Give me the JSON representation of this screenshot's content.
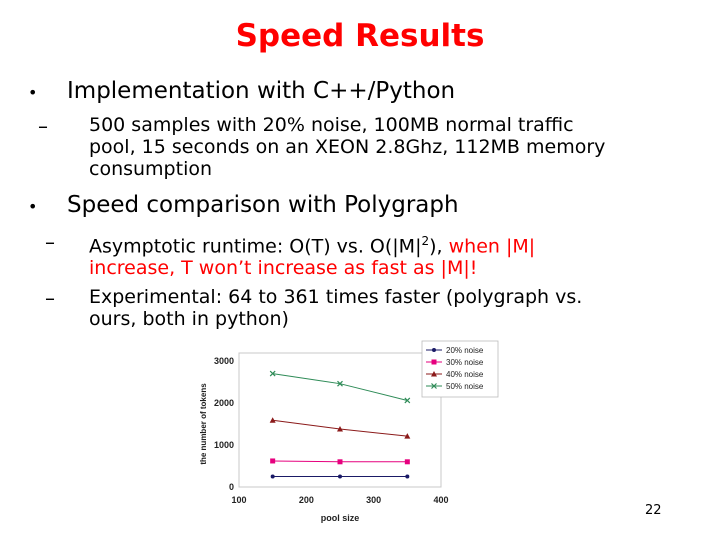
{
  "slide": {
    "title": "Speed Results",
    "bullets": [
      {
        "text": "Implementation with C++/Python",
        "subs": [
          {
            "lines": [
              "500 samples with 20% noise, 100MB normal traffic",
              "pool, 15 seconds on an XEON 2.8Ghz, 112MB memory",
              "consumption"
            ]
          }
        ]
      },
      {
        "text": "Speed comparison with Polygraph",
        "subs": [
          {
            "line1_prefix": "Asymptotic runtime: O(T) vs. O(|M|",
            "line1_sup": "2",
            "line1_mid": "), ",
            "line1_red": "when |M|",
            "line2_red": "increase, T won’t increase as fast as |M|!"
          },
          {
            "lines": [
              "Experimental: 64 to 361 times faster (polygraph vs.",
              "ours, both in python)"
            ]
          }
        ]
      }
    ],
    "page_number": "22"
  },
  "chart_data": {
    "type": "line",
    "xlabel": "pool size",
    "ylabel": "the number of tokens",
    "xlim": [
      100,
      400
    ],
    "ylim": [
      0,
      3000
    ],
    "xticks": [
      "100",
      "200",
      "300",
      "400"
    ],
    "yticks": [
      "0",
      "1000",
      "2000",
      "3000"
    ],
    "grid": false,
    "legend_position": "top-right",
    "x": [
      150,
      250,
      350
    ],
    "series": [
      {
        "name": "20% noise",
        "values": [
          250,
          250,
          250
        ],
        "color": "#1a1a66",
        "marker": "dot"
      },
      {
        "name": "30% noise",
        "values": [
          620,
          600,
          600
        ],
        "color": "#e6007e",
        "marker": "square"
      },
      {
        "name": "40% noise",
        "values": [
          1590,
          1380,
          1210
        ],
        "color": "#8b1a1a",
        "marker": "triangle"
      },
      {
        "name": "50% noise",
        "values": [
          2700,
          2460,
          2060
        ],
        "color": "#2e8b57",
        "marker": "x"
      }
    ]
  }
}
